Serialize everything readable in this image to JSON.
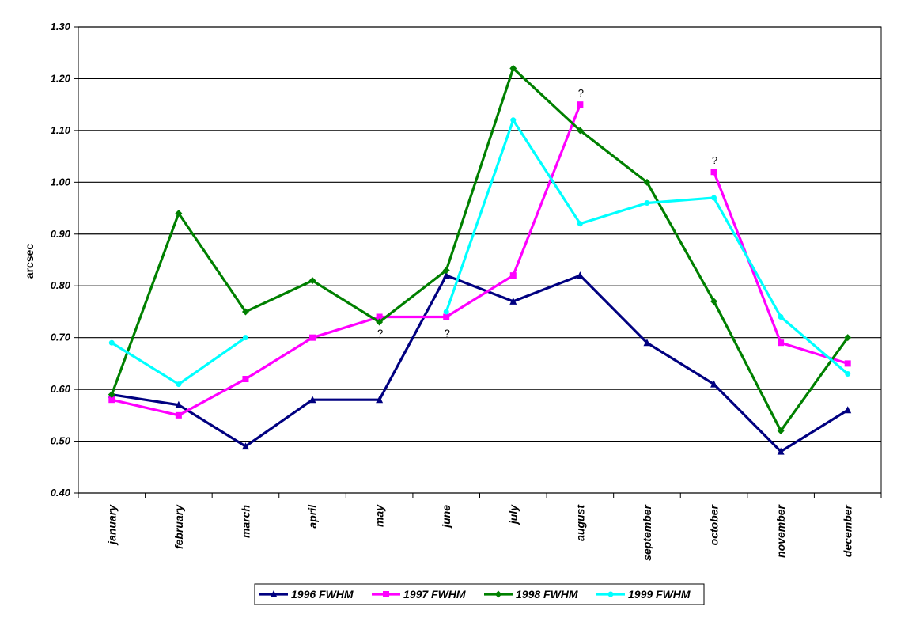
{
  "chart_data": {
    "type": "line",
    "title": "",
    "xlabel": "",
    "ylabel": "arcsec",
    "ylim": [
      0.4,
      1.3
    ],
    "yticks": [
      "0.40",
      "0.50",
      "0.60",
      "0.70",
      "0.80",
      "0.90",
      "1.00",
      "1.10",
      "1.20",
      "1.30"
    ],
    "grid": "horizontal",
    "legend_position": "bottom",
    "categories": [
      "january",
      "february",
      "march",
      "april",
      "may",
      "june",
      "july",
      "august",
      "september",
      "october",
      "november",
      "december"
    ],
    "series": [
      {
        "name": "1996 FWHM",
        "color": "#000080",
        "marker": "triangle",
        "values": [
          0.59,
          0.57,
          0.49,
          0.58,
          0.58,
          0.82,
          0.77,
          0.82,
          0.69,
          0.61,
          0.48,
          0.56
        ]
      },
      {
        "name": "1997 FWHM",
        "color": "#ff00ff",
        "marker": "square",
        "values": [
          0.58,
          0.55,
          0.62,
          0.7,
          0.74,
          0.74,
          0.82,
          1.15,
          null,
          1.02,
          0.69,
          0.65
        ]
      },
      {
        "name": "1998 FWHM",
        "color": "#008000",
        "marker": "diamond",
        "values": [
          0.59,
          0.94,
          0.75,
          0.81,
          0.73,
          0.83,
          1.22,
          1.1,
          1.0,
          0.77,
          0.52,
          0.7
        ]
      },
      {
        "name": "1999 FWHM",
        "color": "#00ffff",
        "marker": "circle",
        "values": [
          0.69,
          0.61,
          0.7,
          null,
          null,
          0.75,
          1.12,
          0.92,
          0.96,
          0.97,
          0.74,
          0.63
        ]
      }
    ],
    "annotations": [
      {
        "text": "?",
        "category": "may",
        "value": 0.74,
        "placement": "below"
      },
      {
        "text": "?",
        "category": "june",
        "value": 0.74,
        "placement": "below"
      },
      {
        "text": "?",
        "category": "august",
        "value": 1.15,
        "placement": "above"
      },
      {
        "text": "?",
        "category": "october",
        "value": 1.02,
        "placement": "above"
      }
    ]
  }
}
